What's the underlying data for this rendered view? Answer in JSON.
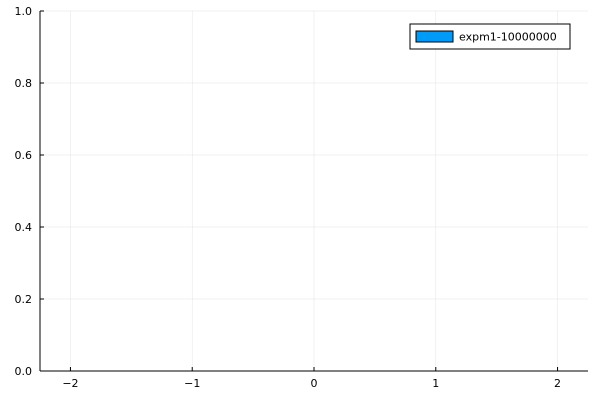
{
  "chart_data": {
    "type": "bar",
    "title": "",
    "xlabel": "",
    "ylabel": "",
    "xlim": [
      -2.25,
      2.25
    ],
    "ylim": [
      0,
      1
    ],
    "x_ticks": [
      -2,
      -1,
      0,
      1,
      2
    ],
    "x_tick_labels": [
      "−2",
      "−1",
      "0",
      "1",
      "2"
    ],
    "y_ticks": [
      0,
      0.2,
      0.4,
      0.6,
      0.8,
      1.0
    ],
    "y_tick_labels": [
      "0.0",
      "0.2",
      "0.4",
      "0.6",
      "0.8",
      "1.0"
    ],
    "grid": true,
    "legend_position": "top-right",
    "series": [
      {
        "name": "expm1-10000000",
        "color": "#009af9",
        "values": []
      }
    ]
  }
}
